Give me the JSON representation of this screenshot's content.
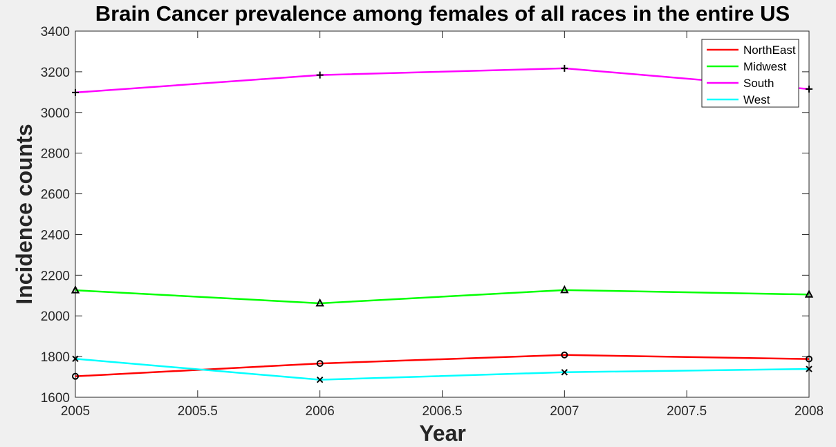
{
  "chart_data": {
    "type": "line",
    "title": "Brain Cancer prevalence among females of all races in the entire US",
    "xlabel": "Year",
    "ylabel": "Incidence counts",
    "xlim": [
      2005,
      2008
    ],
    "ylim": [
      1600,
      3400
    ],
    "xticks": [
      "2005",
      "2005.5",
      "2006",
      "2006.5",
      "2007",
      "2007.5",
      "2008"
    ],
    "yticks": [
      "1600",
      "1800",
      "2000",
      "2200",
      "2400",
      "2600",
      "2800",
      "3000",
      "3200",
      "3400"
    ],
    "grid": false,
    "legend_position": "top-right",
    "x": [
      2005,
      2006,
      2007,
      2008
    ],
    "series": [
      {
        "name": "NorthEast",
        "color": "#ff0000",
        "marker": "circle",
        "values": [
          1703,
          1766,
          1808,
          1788
        ]
      },
      {
        "name": "Midwest",
        "color": "#00ff00",
        "marker": "triangle",
        "values": [
          2126,
          2062,
          2127,
          2105
        ]
      },
      {
        "name": "South",
        "color": "#ff00ff",
        "marker": "plus",
        "values": [
          3098,
          3184,
          3217,
          3115
        ]
      },
      {
        "name": "West",
        "color": "#00ffff",
        "marker": "cross",
        "values": [
          1789,
          1686,
          1723,
          1739
        ]
      }
    ]
  }
}
